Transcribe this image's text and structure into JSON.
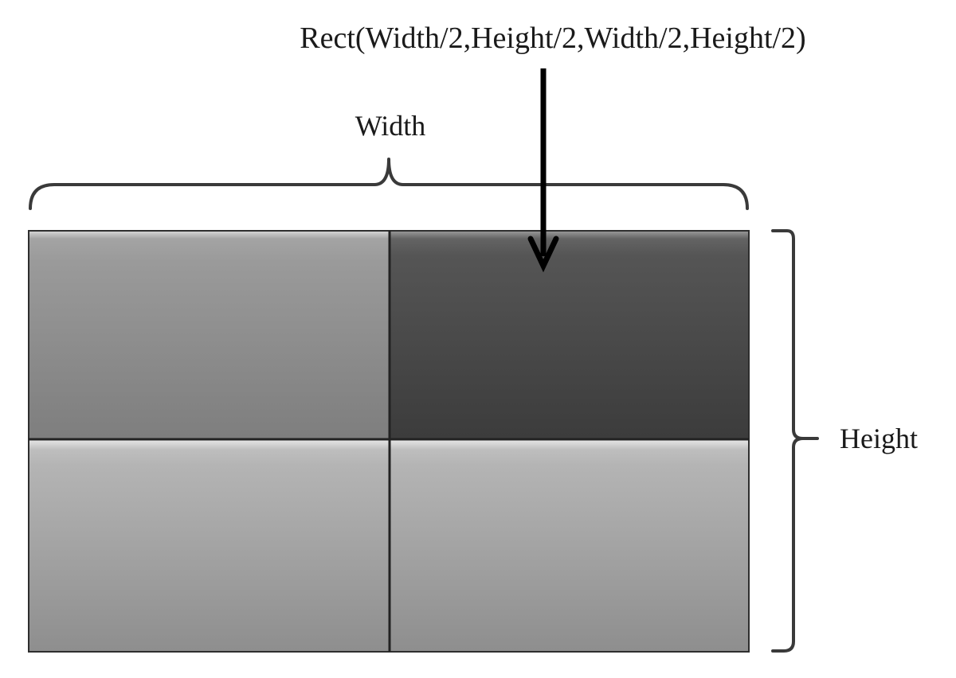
{
  "annotation": {
    "text": "Rect(Width/2,Height/2,Width/2,Height/2)"
  },
  "dimensions": {
    "width_label": "Width",
    "height_label": "Height"
  },
  "grid": {
    "rows": 2,
    "cols": 2,
    "highlighted_quadrant": "top-right"
  },
  "colors": {
    "background": "#ffffff",
    "highlight_cell": "#4a4a4a",
    "top_left_cell": "#8f8f8f",
    "bottom_cell": "#a6a6a6",
    "bracket": "#3a3a3a",
    "arrow": "#000000"
  }
}
